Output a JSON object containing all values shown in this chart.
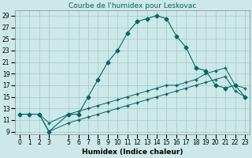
{
  "title": "Courbe de l'humidex pour Leskovac",
  "xlabel": "Humidex (Indice chaleur)",
  "background_color": "#cce8e8",
  "grid_color": "#aacccc",
  "line_color": "#006666",
  "xlim": [
    -0.5,
    23.5
  ],
  "ylim": [
    8.5,
    30
  ],
  "xticks": [
    0,
    1,
    2,
    3,
    5,
    6,
    7,
    8,
    9,
    10,
    11,
    12,
    13,
    14,
    15,
    16,
    17,
    18,
    19,
    20,
    21,
    22,
    23
  ],
  "yticks": [
    9,
    11,
    13,
    15,
    17,
    19,
    21,
    23,
    25,
    27,
    29
  ],
  "series1_x": [
    0,
    1,
    2,
    3,
    5,
    6,
    7,
    8,
    9,
    10,
    11,
    12,
    13,
    14,
    15,
    16,
    17,
    18,
    19,
    20,
    21,
    22,
    23
  ],
  "series1_y": [
    12,
    12,
    12,
    9,
    12,
    12,
    15,
    18,
    21,
    23,
    26,
    28,
    28.5,
    29,
    28.5,
    25.5,
    23.5,
    20,
    19.5,
    17,
    16.5,
    17,
    15
  ],
  "series2_x": [
    0,
    1,
    2,
    3,
    5,
    6,
    7,
    8,
    9,
    10,
    11,
    12,
    13,
    14,
    15,
    16,
    17,
    18,
    19,
    20,
    21,
    22,
    23
  ],
  "series2_y": [
    12,
    12,
    12,
    10.5,
    12,
    12.5,
    13,
    13.5,
    14,
    14.5,
    15,
    15.5,
    16,
    16.5,
    17,
    17,
    17.5,
    18,
    19,
    19.5,
    20,
    17,
    16.5
  ],
  "series3_x": [
    0,
    1,
    2,
    3,
    5,
    6,
    7,
    8,
    9,
    10,
    11,
    12,
    13,
    14,
    15,
    16,
    17,
    18,
    19,
    20,
    21,
    22,
    23
  ],
  "series3_y": [
    12,
    12,
    12,
    9,
    10.5,
    11,
    11.5,
    12,
    12.5,
    13,
    13.5,
    14,
    14.5,
    15,
    15.5,
    16,
    16.5,
    17,
    17.5,
    18,
    18.5,
    16,
    15
  ],
  "title_fontsize": 6.5,
  "label_fontsize": 6.5,
  "tick_fontsize": 5.5
}
